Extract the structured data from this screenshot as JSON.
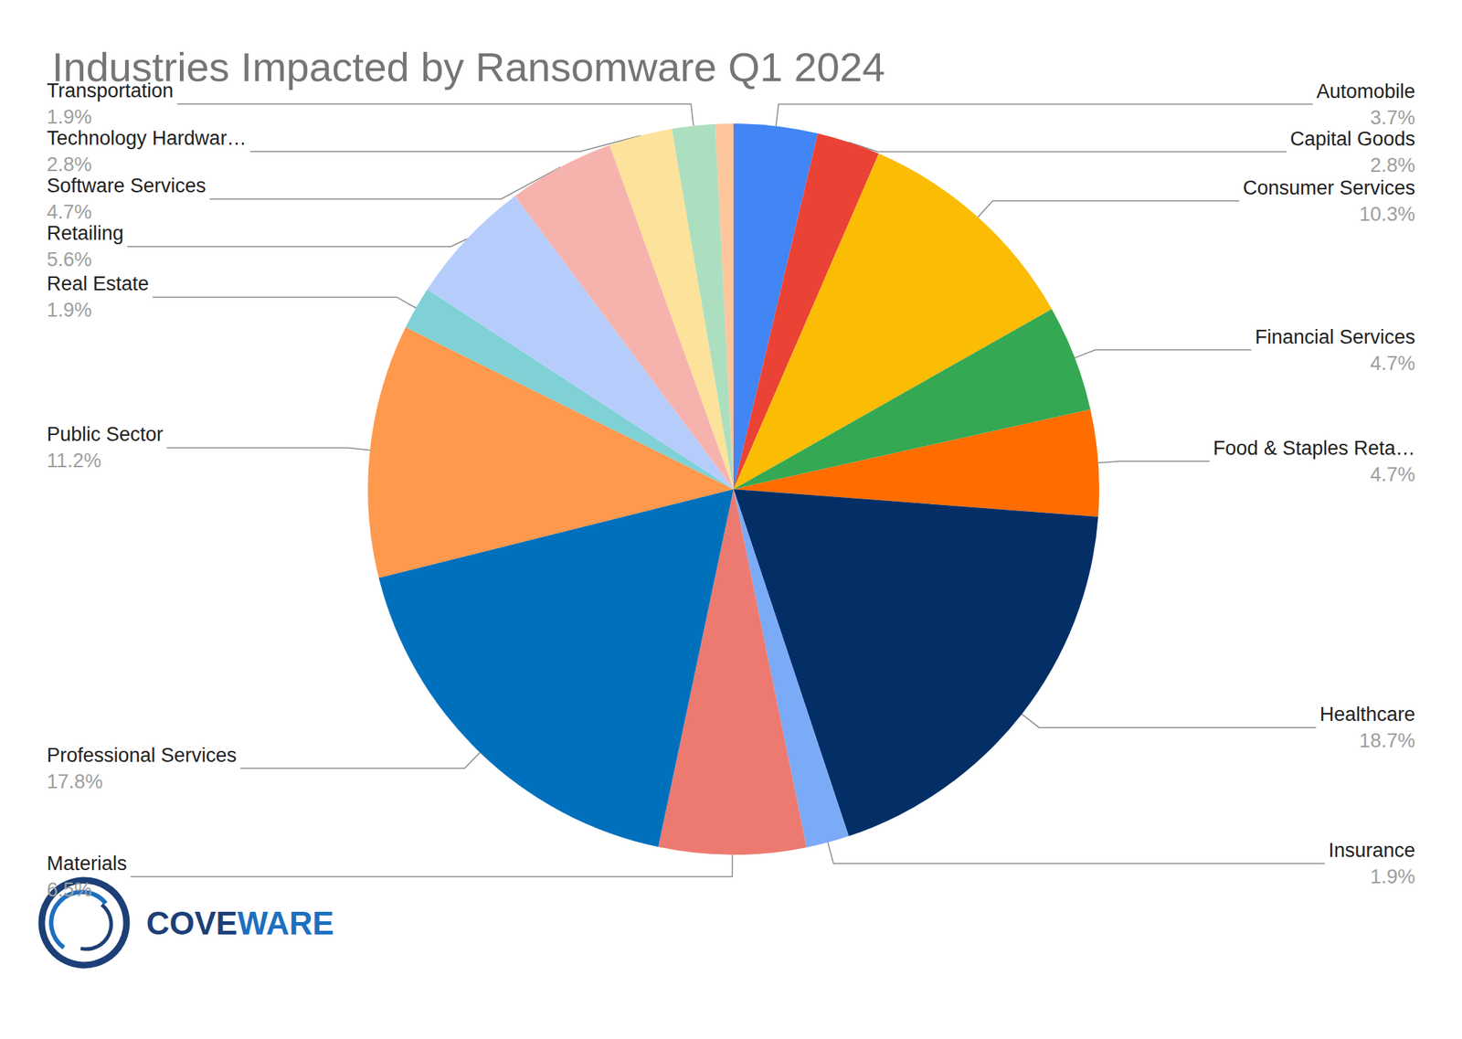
{
  "chart_data": {
    "type": "pie",
    "title": "Industries Impacted by Ransomware Q1 2024",
    "categories": [
      "Automobile",
      "Capital Goods",
      "Consumer Services",
      "Financial Services",
      "Food & Staples Reta…",
      "Healthcare",
      "Insurance",
      "Materials",
      "Professional Services",
      "Public Sector",
      "Real Estate",
      "Retailing",
      "Software Services",
      "Technology Hardwar…",
      "Transportation",
      null
    ],
    "values": [
      3.7,
      2.8,
      10.3,
      4.7,
      4.7,
      18.7,
      1.9,
      6.5,
      17.8,
      11.2,
      1.9,
      5.6,
      4.7,
      2.8,
      1.9,
      0.8
    ],
    "value_labels": [
      "3.7%",
      "2.8%",
      "10.3%",
      "4.7%",
      "4.7%",
      "18.7%",
      "1.9%",
      "6.5%",
      "17.8%",
      "11.2%",
      "1.9%",
      "5.6%",
      "4.7%",
      "2.8%",
      "1.9%",
      null
    ],
    "colors": [
      "#4285f4",
      "#ea4335",
      "#fbbc04",
      "#34a853",
      "#ff6d01",
      "#032f66",
      "#7baaf7",
      "#ec7a70",
      "#0070bd",
      "#ff994d",
      "#7fd1d6",
      "#b6cdfb",
      "#f6b3ae",
      "#fde29b",
      "#acdfbf",
      "#fdc69c"
    ],
    "data_labels": true,
    "annotations": [
      "COVEWARE"
    ]
  }
}
